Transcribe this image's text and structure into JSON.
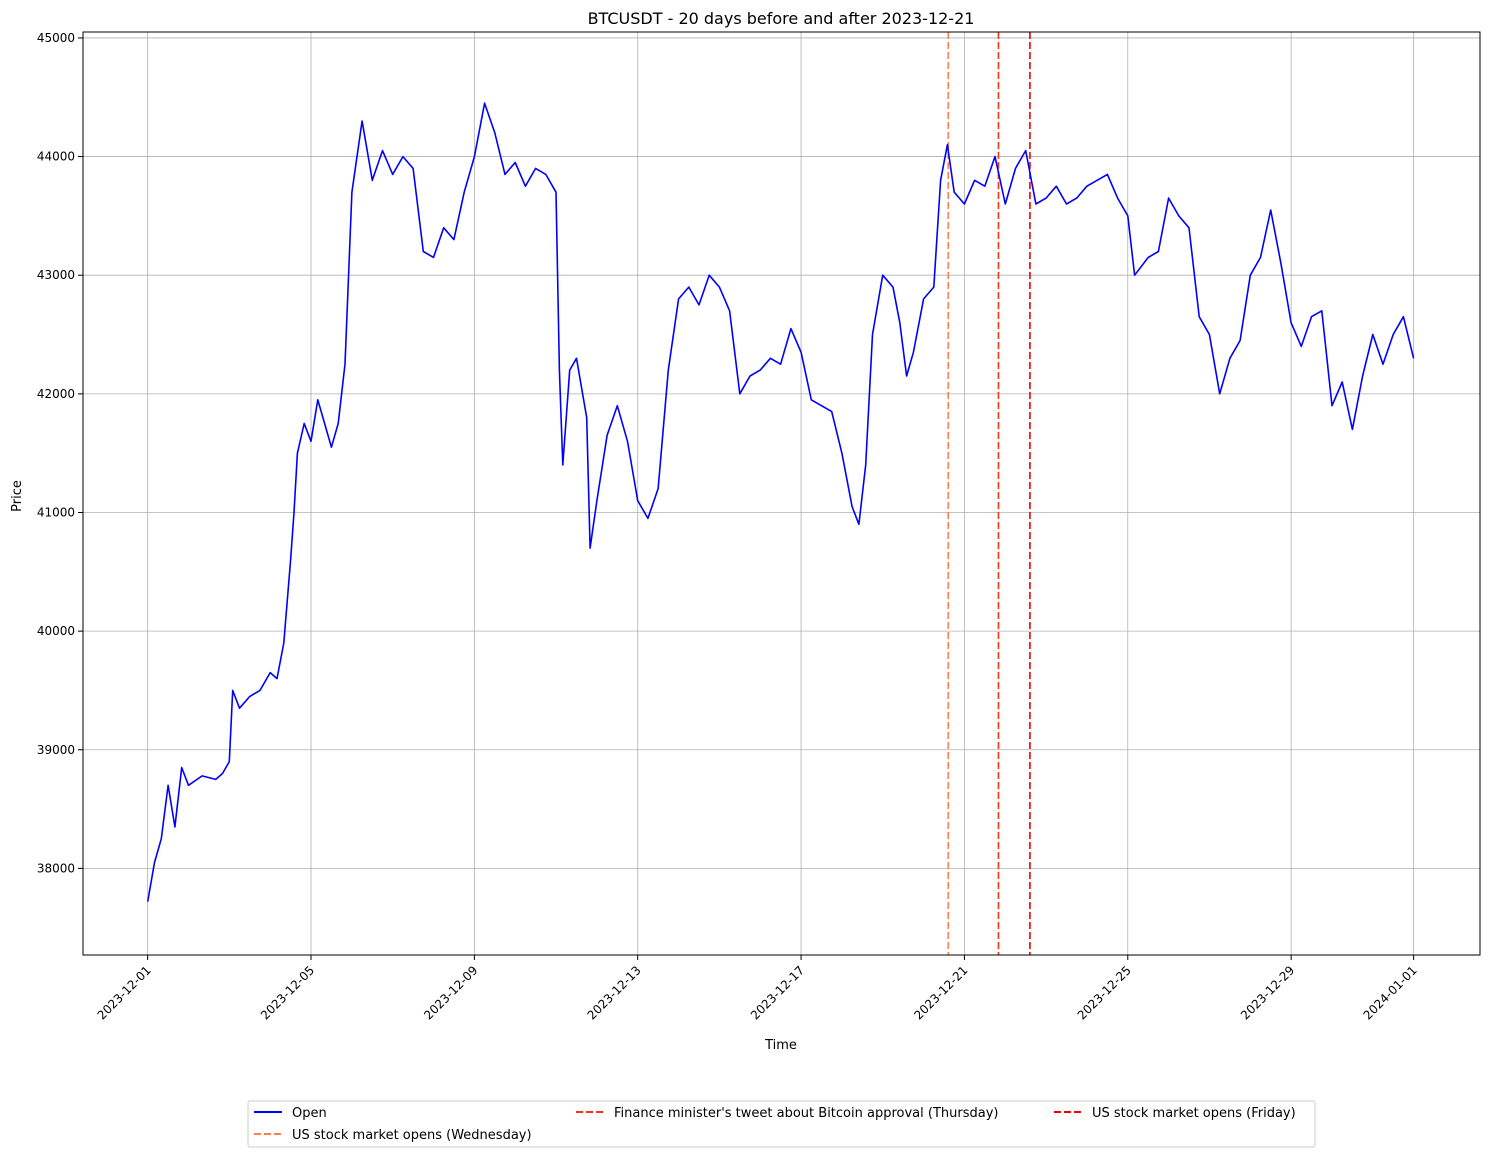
{
  "chart_data": {
    "type": "line",
    "title": "BTCUSDT - 20 days before and after 2023-12-21",
    "xlabel": "Time",
    "ylabel": "Price",
    "xlim": [
      "2023-11-29T10:00",
      "2024-01-02T15:00"
    ],
    "ylim": [
      37270,
      45050
    ],
    "grid": true,
    "x_ticks": [
      "2023-12-01",
      "2023-12-05",
      "2023-12-09",
      "2023-12-13",
      "2023-12-17",
      "2023-12-21",
      "2023-12-25",
      "2023-12-29",
      "2024-01-01"
    ],
    "y_ticks": [
      38000,
      39000,
      40000,
      41000,
      42000,
      43000,
      44000,
      45000
    ],
    "legend_position": "bottom-center",
    "series": [
      {
        "name": "Open",
        "color": "#0000ff",
        "points": [
          [
            "2023-12-01T00:00",
            37720
          ],
          [
            "2023-12-01T04:00",
            38050
          ],
          [
            "2023-12-01T08:00",
            38250
          ],
          [
            "2023-12-01T12:00",
            38700
          ],
          [
            "2023-12-01T16:00",
            38350
          ],
          [
            "2023-12-01T20:00",
            38850
          ],
          [
            "2023-12-02T00:00",
            38700
          ],
          [
            "2023-12-02T08:00",
            38780
          ],
          [
            "2023-12-02T16:00",
            38750
          ],
          [
            "2023-12-02T20:00",
            38800
          ],
          [
            "2023-12-03T00:00",
            38900
          ],
          [
            "2023-12-03T02:00",
            39500
          ],
          [
            "2023-12-03T06:00",
            39350
          ],
          [
            "2023-12-03T12:00",
            39450
          ],
          [
            "2023-12-03T18:00",
            39500
          ],
          [
            "2023-12-04T00:00",
            39650
          ],
          [
            "2023-12-04T04:00",
            39600
          ],
          [
            "2023-12-04T08:00",
            39900
          ],
          [
            "2023-12-04T12:00",
            40600
          ],
          [
            "2023-12-04T14:00",
            41000
          ],
          [
            "2023-12-04T16:00",
            41500
          ],
          [
            "2023-12-04T20:00",
            41750
          ],
          [
            "2023-12-05T00:00",
            41600
          ],
          [
            "2023-12-05T04:00",
            41950
          ],
          [
            "2023-12-05T08:00",
            41750
          ],
          [
            "2023-12-05T12:00",
            41550
          ],
          [
            "2023-12-05T16:00",
            41750
          ],
          [
            "2023-12-05T20:00",
            42250
          ],
          [
            "2023-12-06T00:00",
            43700
          ],
          [
            "2023-12-06T02:00",
            43900
          ],
          [
            "2023-12-06T06:00",
            44300
          ],
          [
            "2023-12-06T12:00",
            43800
          ],
          [
            "2023-12-06T18:00",
            44050
          ],
          [
            "2023-12-07T00:00",
            43850
          ],
          [
            "2023-12-07T06:00",
            44000
          ],
          [
            "2023-12-07T12:00",
            43900
          ],
          [
            "2023-12-07T18:00",
            43200
          ],
          [
            "2023-12-08T00:00",
            43150
          ],
          [
            "2023-12-08T06:00",
            43400
          ],
          [
            "2023-12-08T12:00",
            43300
          ],
          [
            "2023-12-08T18:00",
            43700
          ],
          [
            "2023-12-09T00:00",
            44000
          ],
          [
            "2023-12-09T06:00",
            44450
          ],
          [
            "2023-12-09T12:00",
            44200
          ],
          [
            "2023-12-09T18:00",
            43850
          ],
          [
            "2023-12-10T00:00",
            43950
          ],
          [
            "2023-12-10T06:00",
            43750
          ],
          [
            "2023-12-10T12:00",
            43900
          ],
          [
            "2023-12-10T18:00",
            43850
          ],
          [
            "2023-12-11T00:00",
            43700
          ],
          [
            "2023-12-11T02:00",
            42200
          ],
          [
            "2023-12-11T04:00",
            41400
          ],
          [
            "2023-12-11T08:00",
            42200
          ],
          [
            "2023-12-11T12:00",
            42300
          ],
          [
            "2023-12-11T18:00",
            41800
          ],
          [
            "2023-12-11T20:00",
            40700
          ],
          [
            "2023-12-12T00:00",
            41100
          ],
          [
            "2023-12-12T06:00",
            41650
          ],
          [
            "2023-12-12T12:00",
            41900
          ],
          [
            "2023-12-12T18:00",
            41600
          ],
          [
            "2023-12-13T00:00",
            41100
          ],
          [
            "2023-12-13T06:00",
            40950
          ],
          [
            "2023-12-13T12:00",
            41200
          ],
          [
            "2023-12-13T18:00",
            42200
          ],
          [
            "2023-12-14T00:00",
            42800
          ],
          [
            "2023-12-14T06:00",
            42900
          ],
          [
            "2023-12-14T12:00",
            42750
          ],
          [
            "2023-12-14T18:00",
            43000
          ],
          [
            "2023-12-15T00:00",
            42900
          ],
          [
            "2023-12-15T06:00",
            42700
          ],
          [
            "2023-12-15T12:00",
            42000
          ],
          [
            "2023-12-15T18:00",
            42150
          ],
          [
            "2023-12-16T00:00",
            42200
          ],
          [
            "2023-12-16T06:00",
            42300
          ],
          [
            "2023-12-16T12:00",
            42250
          ],
          [
            "2023-12-16T18:00",
            42550
          ],
          [
            "2023-12-17T00:00",
            42350
          ],
          [
            "2023-12-17T06:00",
            41950
          ],
          [
            "2023-12-17T12:00",
            41900
          ],
          [
            "2023-12-17T18:00",
            41850
          ],
          [
            "2023-12-18T00:00",
            41500
          ],
          [
            "2023-12-18T06:00",
            41050
          ],
          [
            "2023-12-18T10:00",
            40900
          ],
          [
            "2023-12-18T14:00",
            41400
          ],
          [
            "2023-12-18T18:00",
            42500
          ],
          [
            "2023-12-19T00:00",
            43000
          ],
          [
            "2023-12-19T06:00",
            42900
          ],
          [
            "2023-12-19T10:00",
            42600
          ],
          [
            "2023-12-19T14:00",
            42150
          ],
          [
            "2023-12-19T18:00",
            42350
          ],
          [
            "2023-12-20T00:00",
            42800
          ],
          [
            "2023-12-20T06:00",
            42900
          ],
          [
            "2023-12-20T10:00",
            43800
          ],
          [
            "2023-12-20T14:00",
            44100
          ],
          [
            "2023-12-20T18:00",
            43700
          ],
          [
            "2023-12-21T00:00",
            43600
          ],
          [
            "2023-12-21T06:00",
            43800
          ],
          [
            "2023-12-21T12:00",
            43750
          ],
          [
            "2023-12-21T18:00",
            44000
          ],
          [
            "2023-12-22T00:00",
            43600
          ],
          [
            "2023-12-22T06:00",
            43900
          ],
          [
            "2023-12-22T12:00",
            44050
          ],
          [
            "2023-12-22T18:00",
            43600
          ],
          [
            "2023-12-23T00:00",
            43650
          ],
          [
            "2023-12-23T06:00",
            43750
          ],
          [
            "2023-12-23T12:00",
            43600
          ],
          [
            "2023-12-23T18:00",
            43650
          ],
          [
            "2023-12-24T00:00",
            43750
          ],
          [
            "2023-12-24T06:00",
            43800
          ],
          [
            "2023-12-24T12:00",
            43850
          ],
          [
            "2023-12-24T18:00",
            43650
          ],
          [
            "2023-12-25T00:00",
            43500
          ],
          [
            "2023-12-25T04:00",
            43000
          ],
          [
            "2023-12-25T12:00",
            43150
          ],
          [
            "2023-12-25T18:00",
            43200
          ],
          [
            "2023-12-26T00:00",
            43650
          ],
          [
            "2023-12-26T06:00",
            43500
          ],
          [
            "2023-12-26T12:00",
            43400
          ],
          [
            "2023-12-26T18:00",
            42650
          ],
          [
            "2023-12-27T00:00",
            42500
          ],
          [
            "2023-12-27T06:00",
            42000
          ],
          [
            "2023-12-27T12:00",
            42300
          ],
          [
            "2023-12-27T18:00",
            42450
          ],
          [
            "2023-12-28T00:00",
            43000
          ],
          [
            "2023-12-28T06:00",
            43150
          ],
          [
            "2023-12-28T12:00",
            43550
          ],
          [
            "2023-12-28T18:00",
            43100
          ],
          [
            "2023-12-29T00:00",
            42600
          ],
          [
            "2023-12-29T06:00",
            42400
          ],
          [
            "2023-12-29T12:00",
            42650
          ],
          [
            "2023-12-29T18:00",
            42700
          ],
          [
            "2023-12-30T00:00",
            41900
          ],
          [
            "2023-12-30T06:00",
            42100
          ],
          [
            "2023-12-30T12:00",
            41700
          ],
          [
            "2023-12-30T18:00",
            42150
          ],
          [
            "2023-12-31T00:00",
            42500
          ],
          [
            "2023-12-31T06:00",
            42250
          ],
          [
            "2023-12-31T12:00",
            42500
          ],
          [
            "2023-12-31T18:00",
            42650
          ],
          [
            "2024-01-01T00:00",
            42300
          ]
        ]
      }
    ],
    "event_lines": [
      {
        "label": "US stock market opens (Wednesday)",
        "x": "2023-12-20T14:30",
        "color": "#ff7f50"
      },
      {
        "label": "Finance minister's tweet about Bitcoin approval (Thursday)",
        "x": "2023-12-21T20:00",
        "color": "#ff3311"
      },
      {
        "label": "US stock market opens (Friday)",
        "x": "2023-12-22T14:30",
        "color": "#ee0000"
      }
    ]
  }
}
